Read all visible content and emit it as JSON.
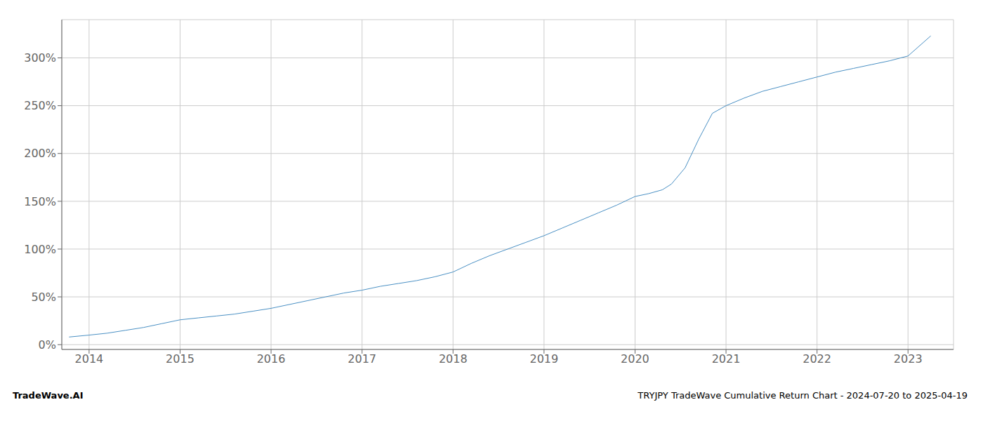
{
  "chart_data": {
    "type": "line",
    "title": "TRYJPY TradeWave Cumulative Return Chart - 2024-07-20 to 2025-04-19",
    "annotations": [
      "TradeWave.AI"
    ],
    "color": "#4a90c4",
    "grid": true,
    "xlim": [
      2013.7,
      2023.5
    ],
    "ylim": [
      -5,
      340
    ],
    "xticks": [
      2014,
      2015,
      2016,
      2017,
      2018,
      2019,
      2020,
      2021,
      2022,
      2023
    ],
    "yticks": [
      {
        "value": 0,
        "label": "0%"
      },
      {
        "value": 50,
        "label": "50%"
      },
      {
        "value": 100,
        "label": "100%"
      },
      {
        "value": 150,
        "label": "150%"
      },
      {
        "value": 200,
        "label": "200%"
      },
      {
        "value": 250,
        "label": "250%"
      },
      {
        "value": 300,
        "label": "300%"
      }
    ],
    "x": [
      2013.78,
      2014.0,
      2014.2,
      2014.4,
      2014.6,
      2014.8,
      2015.0,
      2015.2,
      2015.4,
      2015.6,
      2015.8,
      2016.0,
      2016.2,
      2016.4,
      2016.6,
      2016.8,
      2017.0,
      2017.2,
      2017.4,
      2017.6,
      2017.8,
      2018.0,
      2018.2,
      2018.4,
      2018.6,
      2018.8,
      2019.0,
      2019.2,
      2019.4,
      2019.6,
      2019.8,
      2020.0,
      2020.15,
      2020.3,
      2020.4,
      2020.55,
      2020.7,
      2020.85,
      2021.0,
      2021.2,
      2021.4,
      2021.6,
      2021.8,
      2022.0,
      2022.2,
      2022.4,
      2022.6,
      2022.8,
      2023.0,
      2023.25
    ],
    "values": [
      8,
      10,
      12,
      15,
      18,
      22,
      26,
      28,
      30,
      32,
      35,
      38,
      42,
      46,
      50,
      54,
      57,
      61,
      64,
      67,
      71,
      76,
      85,
      93,
      100,
      107,
      114,
      122,
      130,
      138,
      146,
      155,
      158,
      162,
      168,
      185,
      215,
      242,
      250,
      258,
      265,
      270,
      275,
      280,
      285,
      289,
      293,
      297,
      302,
      323
    ]
  }
}
